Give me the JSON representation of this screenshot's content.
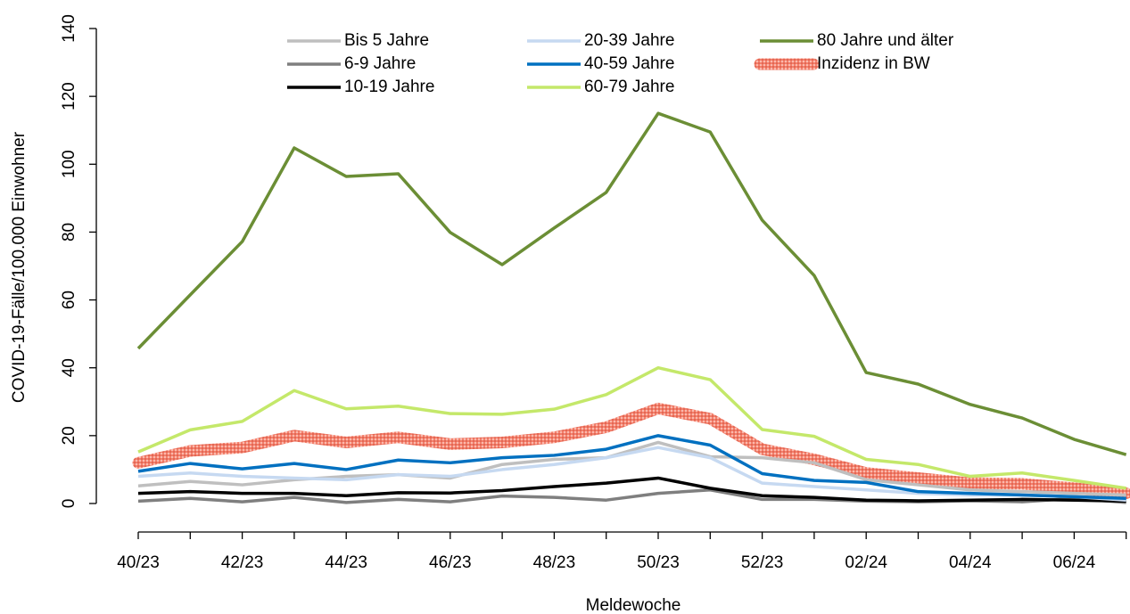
{
  "chart_data": {
    "type": "line",
    "x_label": "Meldewoche",
    "y_label": "COVID-19-Fälle/100.000 Einwohner",
    "categories": [
      "40/23",
      null,
      "42/23",
      null,
      "44/23",
      null,
      "46/23",
      null,
      "48/23",
      null,
      "50/23",
      null,
      "52/23",
      null,
      "02/24",
      null,
      "04/24",
      null,
      "06/24",
      null
    ],
    "ylim": [
      0,
      140
    ],
    "yticks": [
      0,
      20,
      40,
      60,
      80,
      100,
      120,
      140
    ],
    "legend": "top",
    "series": [
      {
        "name": "Bis 5 Jahre",
        "color": "#bfbfbf",
        "values": [
          5.2,
          6.5,
          5.5,
          7.0,
          8.0,
          8.5,
          7.5,
          11.5,
          13.0,
          13.5,
          18.0,
          13.8,
          13.5,
          12.0,
          7.0,
          5.5,
          4.0,
          3.5,
          3.0,
          2.5
        ]
      },
      {
        "name": "6-9 Jahre",
        "color": "#7f7f7f",
        "values": [
          0.7,
          1.5,
          0.5,
          1.8,
          0.3,
          1.2,
          0.5,
          2.2,
          1.8,
          1.0,
          3.0,
          4.0,
          1.2,
          1.2,
          0.7,
          0.5,
          0.8,
          0.5,
          1.5,
          0.3
        ]
      },
      {
        "name": "10-19 Jahre",
        "color": "#000000",
        "values": [
          3.0,
          3.5,
          3.0,
          3.0,
          2.3,
          3.2,
          3.1,
          3.8,
          5.0,
          6.0,
          7.5,
          4.5,
          2.3,
          1.8,
          1.0,
          0.8,
          1.0,
          1.2,
          1.0,
          0.7
        ]
      },
      {
        "name": "20-39 Jahre",
        "color": "#c6d9f1",
        "values": [
          8.0,
          9.0,
          8.0,
          7.5,
          7.0,
          8.5,
          8.0,
          10.0,
          11.5,
          13.5,
          16.5,
          13.5,
          6.0,
          5.0,
          4.0,
          3.0,
          2.5,
          2.5,
          2.0,
          1.0
        ]
      },
      {
        "name": "40-59 Jahre",
        "color": "#0070c0",
        "values": [
          9.5,
          11.8,
          10.2,
          11.8,
          10.0,
          12.8,
          12.0,
          13.5,
          14.2,
          16.0,
          20.0,
          17.2,
          8.8,
          6.8,
          6.2,
          3.5,
          3.0,
          2.5,
          2.0,
          1.5
        ]
      },
      {
        "name": "60-79 Jahre",
        "color": "#c4e86a",
        "values": [
          15.2,
          21.7,
          24.2,
          33.3,
          27.9,
          28.7,
          26.5,
          26.3,
          27.8,
          32.1,
          40.0,
          36.5,
          21.8,
          19.8,
          13.0,
          11.5,
          8.0,
          9.0,
          6.8,
          4.5
        ]
      },
      {
        "name": "80 Jahre und älter",
        "color": "#6b8e35",
        "values": [
          45.7,
          61.5,
          77.2,
          104.8,
          96.4,
          97.2,
          79.9,
          70.4,
          81.2,
          91.7,
          115.0,
          109.5,
          83.5,
          67.2,
          38.6,
          35.2,
          29.2,
          25.2,
          18.9,
          14.4
        ]
      },
      {
        "name": "Inzidenz in BW",
        "color": "#f4806b",
        "thick": true,
        "values": [
          12.0,
          15.5,
          16.5,
          20.0,
          18.0,
          19.5,
          17.5,
          18.0,
          19.5,
          22.5,
          28.0,
          25.0,
          16.0,
          13.0,
          9.0,
          7.5,
          6.0,
          5.8,
          4.5,
          3.0
        ]
      }
    ]
  }
}
